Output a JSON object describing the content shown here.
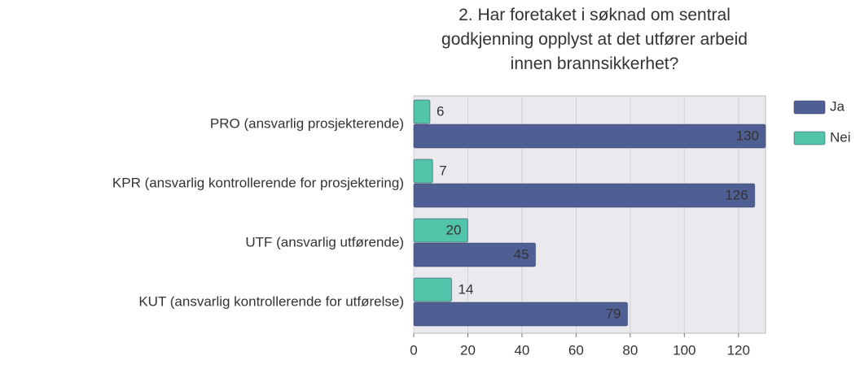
{
  "chart_data": {
    "type": "barh",
    "title": "2. Har foretaket i søknad om sentral godkjenning opplyst at det utfører arbeid innen brannsikkerhet?",
    "categories": [
      "PRO (ansvarlig prosjekterende)",
      "KPR (ansvarlig kontrollerende for prosjektering)",
      "UTF (ansvarlig utførende)",
      "KUT (ansvarlig kontrollerende for utførelse)"
    ],
    "series": [
      {
        "name": "Ja",
        "color": "#4f5f94",
        "values": [
          130,
          126,
          45,
          79
        ]
      },
      {
        "name": "Nei",
        "color": "#52c4aa",
        "values": [
          6,
          7,
          20,
          14
        ]
      }
    ],
    "xlim": [
      0,
      130
    ],
    "xticks": [
      0,
      20,
      40,
      60,
      80,
      100,
      120
    ],
    "grid": true,
    "legend": "right"
  }
}
